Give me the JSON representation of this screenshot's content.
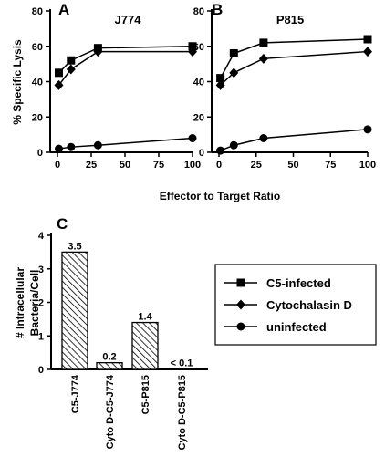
{
  "figure": {
    "shared_xlabel": "Effector to Target Ratio",
    "shared_ylabel": "% Specific Lysis"
  },
  "legend": {
    "entries": [
      {
        "label": "C5-infected",
        "marker": "square"
      },
      {
        "label": "Cytochalasin D",
        "marker": "diamond"
      },
      {
        "label": "uninfected",
        "marker": "circle"
      }
    ]
  },
  "chart_data": [
    {
      "panel": "A",
      "type": "line",
      "title": "J774",
      "xlabel": "Effector to Target Ratio",
      "ylabel": "% Specific Lysis",
      "xlim": [
        0,
        100
      ],
      "ylim": [
        0,
        80
      ],
      "xticks": [
        "0",
        "25",
        "50",
        "75",
        "100"
      ],
      "yticks": [
        "0",
        "20",
        "40",
        "60",
        "80"
      ],
      "series": [
        {
          "name": "C5-infected",
          "marker": "square",
          "x": [
            1,
            10,
            30,
            100
          ],
          "y": [
            45,
            52,
            59,
            60
          ]
        },
        {
          "name": "Cytochalasin D",
          "marker": "diamond",
          "x": [
            1,
            10,
            30,
            100
          ],
          "y": [
            38,
            47,
            57,
            57
          ]
        },
        {
          "name": "uninfected",
          "marker": "circle",
          "x": [
            1,
            10,
            30,
            100
          ],
          "y": [
            2,
            3,
            4,
            8
          ]
        }
      ]
    },
    {
      "panel": "B",
      "type": "line",
      "title": "P815",
      "xlabel": "Effector to Target Ratio",
      "ylabel": "",
      "xlim": [
        0,
        100
      ],
      "ylim": [
        0,
        80
      ],
      "xticks": [
        "0",
        "25",
        "50",
        "75",
        "100"
      ],
      "yticks": [
        "0",
        "20",
        "40",
        "60",
        "80"
      ],
      "series": [
        {
          "name": "C5-infected",
          "marker": "square",
          "x": [
            1,
            10,
            30,
            100
          ],
          "y": [
            42,
            56,
            62,
            64
          ]
        },
        {
          "name": "Cytochalasin D",
          "marker": "diamond",
          "x": [
            1,
            10,
            30,
            100
          ],
          "y": [
            38,
            45,
            53,
            57
          ]
        },
        {
          "name": "uninfected",
          "marker": "circle",
          "x": [
            1,
            10,
            30,
            100
          ],
          "y": [
            1,
            4,
            8,
            13
          ]
        }
      ]
    },
    {
      "panel": "C",
      "type": "bar",
      "title": "",
      "xlabel": "",
      "ylabel": "# Intracellular Bacteria/Cell",
      "ylim": [
        0,
        4
      ],
      "yticks": [
        "0",
        "1",
        "2",
        "3",
        "4"
      ],
      "categories": [
        "C5-J774",
        "Cyto D-C5-J774",
        "C5-P815",
        "Cyto D-C5-P815"
      ],
      "values": [
        3.5,
        0.2,
        1.4,
        0.02
      ],
      "data_labels": [
        "3.5",
        "0.2",
        "1.4",
        "< 0.1"
      ],
      "fill": "diagonal-hatch"
    }
  ]
}
